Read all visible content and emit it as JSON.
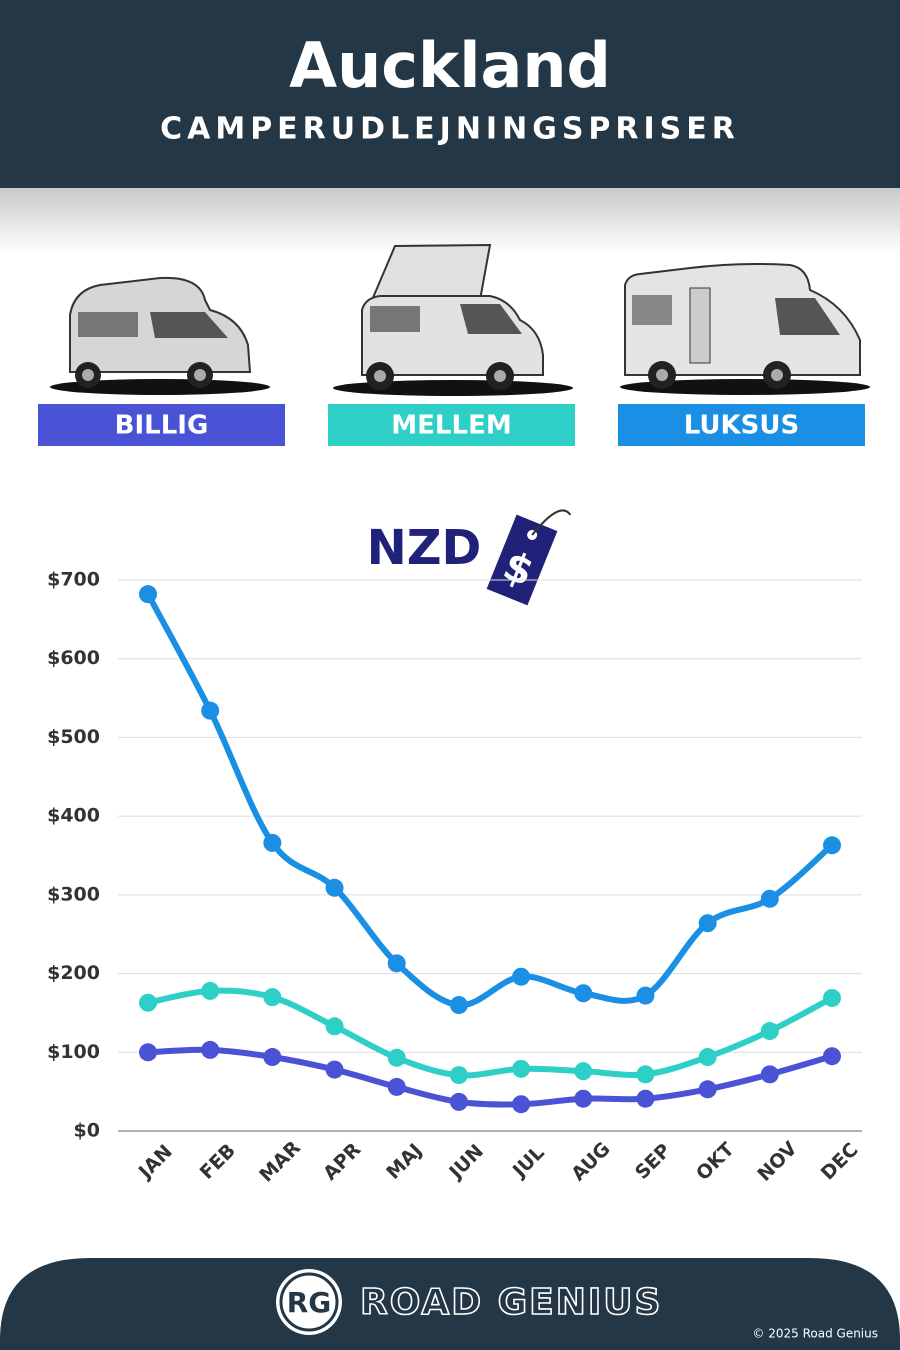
{
  "chart_data": {
    "type": "line",
    "title": "Auckland",
    "subtitle": "CAMPERUDLEJNINGSPRISER",
    "currency": "NZD",
    "currency_icon": "$",
    "categories": [
      "JAN",
      "FEB",
      "MAR",
      "APR",
      "MAJ",
      "JUN",
      "JUL",
      "AUG",
      "SEP",
      "OKT",
      "NOV",
      "DEC"
    ],
    "series": [
      {
        "name": "BILLIG",
        "color": "#4a52d6",
        "values": [
          100,
          103,
          94,
          78,
          56,
          37,
          34,
          41,
          41,
          53,
          72,
          95
        ]
      },
      {
        "name": "MELLEM",
        "color": "#2ecfc6",
        "values": [
          163,
          178,
          170,
          133,
          93,
          71,
          79,
          76,
          72,
          94,
          127,
          169
        ]
      },
      {
        "name": "LUKSUS",
        "color": "#1a8fe3",
        "values": [
          682,
          534,
          366,
          309,
          213,
          160,
          196,
          175,
          172,
          264,
          295,
          363
        ]
      }
    ],
    "ylim": [
      0,
      700
    ],
    "yticks": [
      {
        "value": 0,
        "label": "$0"
      },
      {
        "value": 100,
        "label": "$100"
      },
      {
        "value": 200,
        "label": "$200"
      },
      {
        "value": 300,
        "label": "$300"
      },
      {
        "value": 400,
        "label": "$400"
      },
      {
        "value": 500,
        "label": "$500"
      },
      {
        "value": 600,
        "label": "$600"
      },
      {
        "value": 700,
        "label": "$700"
      }
    ],
    "grid": true
  },
  "footer": {
    "logo": "RG",
    "brand": "ROAD GENIUS",
    "copyright": "© 2025 Road Genius"
  }
}
